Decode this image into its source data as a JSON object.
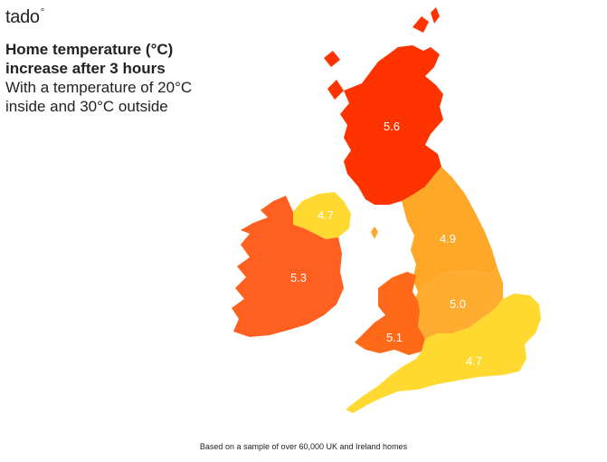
{
  "brand": {
    "name": "tado",
    "mark": "°"
  },
  "title": {
    "line1": "Home temperature (°C)",
    "line2": "increase after 3 hours",
    "line3": "With a temperature of 20°C",
    "line4": "inside and 30°C outside"
  },
  "regions": {
    "scotland": {
      "value": "5.6",
      "color": "#ff3300"
    },
    "ireland": {
      "value": "5.3",
      "color": "#ff5f1f"
    },
    "northern_ireland": {
      "value": "4.7",
      "color": "#ffd930"
    },
    "north_england": {
      "value": "4.9",
      "color": "#ffa726"
    },
    "midlands": {
      "value": "5.0",
      "color": "#ffad30"
    },
    "wales": {
      "value": "5.1",
      "color": "#ff6a1a"
    },
    "south_england": {
      "value": "4.7",
      "color": "#ffd930"
    }
  },
  "footnote": "Based on a sample of over 60,000 UK and Ireland homes"
}
